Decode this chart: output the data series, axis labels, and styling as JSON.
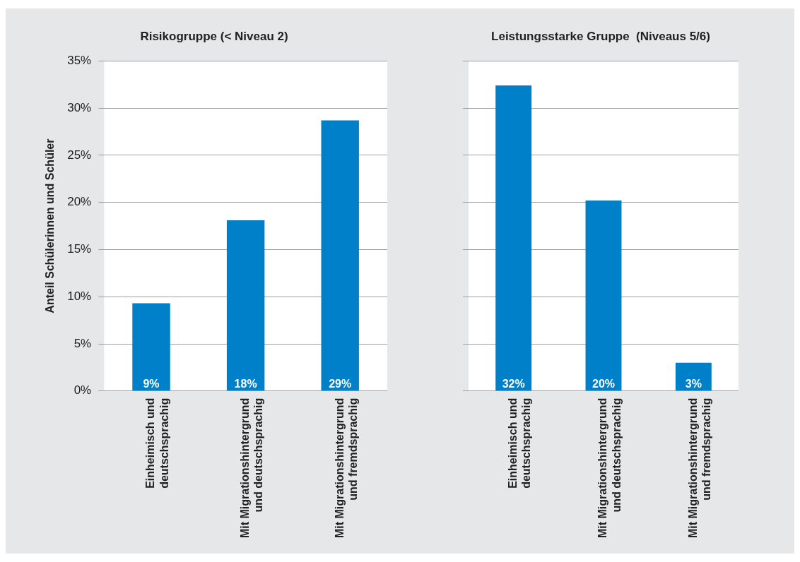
{
  "chart_data": [
    {
      "type": "bar",
      "title": "Risikogruppe (< Niveau 2)",
      "ylabel": "Anteil Schülerinnen und Schüler",
      "categories": [
        "Einheimisch und deutschsprachig",
        "Mit Migrationshintergrund und deutschsprachig",
        "Mit Migrationshintergrund und fremdsprachig"
      ],
      "values": [
        9.3,
        18.1,
        28.7
      ],
      "value_labels": [
        "9%",
        "18%",
        "29%"
      ],
      "color": "#0080c8",
      "ylim": [
        0,
        35
      ],
      "yticks": [
        {
          "value": 0,
          "label": "0%"
        },
        {
          "value": 5,
          "label": "5%"
        },
        {
          "value": 10,
          "label": "10%"
        },
        {
          "value": 15,
          "label": "15%"
        },
        {
          "value": 20,
          "label": "20%"
        },
        {
          "value": 25,
          "label": "25%"
        },
        {
          "value": 30,
          "label": "30%"
        },
        {
          "value": 35,
          "label": "35%"
        }
      ],
      "grid": "y"
    },
    {
      "type": "bar",
      "title": "Leistungsstarke Gruppe  (Niveaus 5/6)",
      "categories": [
        "Einheimisch und deutschsprachig",
        "Mit Migrationshintergrund und deutschsprachig",
        "Mit Migrationshintergrund und fremdsprachig"
      ],
      "values": [
        32.4,
        20.2,
        3.0
      ],
      "value_labels": [
        "32%",
        "20%",
        "3%"
      ],
      "color": "#0080c8",
      "ylim": [
        0,
        35
      ],
      "yticks": [
        {
          "value": 0,
          "label": null
        },
        {
          "value": 5,
          "label": null
        },
        {
          "value": 10,
          "label": null
        },
        {
          "value": 15,
          "label": null
        },
        {
          "value": 20,
          "label": null
        },
        {
          "value": 25,
          "label": null
        },
        {
          "value": 30,
          "label": null
        },
        {
          "value": 35,
          "label": null
        }
      ],
      "grid": "y",
      "tick_labels": "x"
    }
  ]
}
